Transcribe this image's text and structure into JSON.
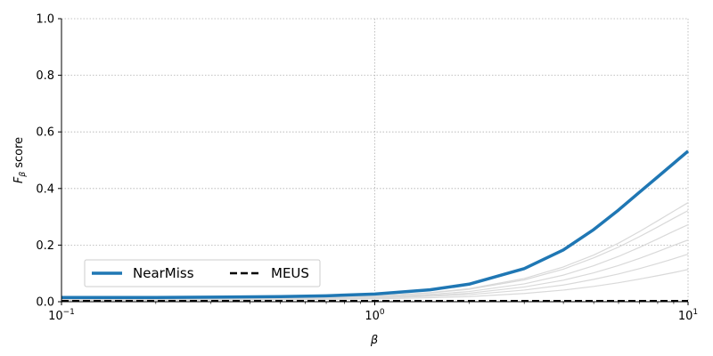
{
  "chart_data": {
    "type": "line",
    "title": "",
    "xlabel": "β",
    "ylabel_main": "F",
    "ylabel_sub": "β",
    "ylabel_rest": " score",
    "xscale": "log",
    "xlim": [
      0.1,
      10
    ],
    "ylim": [
      0.0,
      1.0
    ],
    "grid": true,
    "legend_position": "lower-left",
    "x_ticks": [
      {
        "value": 0.1,
        "base": "10",
        "exp": "−1"
      },
      {
        "value": 1,
        "base": "10",
        "exp": "0"
      },
      {
        "value": 10,
        "base": "10",
        "exp": "1"
      }
    ],
    "y_ticks": [
      {
        "value": 0.0,
        "label": "0.0"
      },
      {
        "value": 0.2,
        "label": "0.2"
      },
      {
        "value": 0.4,
        "label": "0.4"
      },
      {
        "value": 0.6,
        "label": "0.6"
      },
      {
        "value": 0.8,
        "label": "0.8"
      },
      {
        "value": 1.0,
        "label": "1.0"
      }
    ],
    "x": [
      0.1,
      0.15,
      0.2,
      0.3,
      0.5,
      0.7,
      1.0,
      1.5,
      2.0,
      3.0,
      4.0,
      5.0,
      6.0,
      7.0,
      8.0,
      9.0,
      10.0
    ],
    "series": [
      {
        "name": "NearMiss",
        "color": "#1f77b4",
        "style": "solid",
        "values": [
          0.015,
          0.015,
          0.015,
          0.016,
          0.018,
          0.021,
          0.027,
          0.042,
          0.062,
          0.117,
          0.183,
          0.255,
          0.324,
          0.387,
          0.441,
          0.489,
          0.532
        ]
      },
      {
        "name": "MEUS",
        "color": "#000000",
        "style": "dashed",
        "values": [
          0.003,
          0.003,
          0.003,
          0.003,
          0.003,
          0.003,
          0.003,
          0.003,
          0.003,
          0.003,
          0.003,
          0.003,
          0.003,
          0.003,
          0.003,
          0.003,
          0.003
        ]
      }
    ],
    "background_series": [
      {
        "color": "#d9d9d9",
        "values": [
          0.01,
          0.01,
          0.01,
          0.011,
          0.013,
          0.015,
          0.02,
          0.032,
          0.046,
          0.082,
          0.123,
          0.165,
          0.207,
          0.248,
          0.286,
          0.32,
          0.35
        ]
      },
      {
        "color": "#d9d9d9",
        "values": [
          0.01,
          0.01,
          0.01,
          0.011,
          0.013,
          0.015,
          0.02,
          0.031,
          0.044,
          0.077,
          0.115,
          0.155,
          0.193,
          0.23,
          0.264,
          0.295,
          0.322
        ]
      },
      {
        "color": "#d9d9d9",
        "values": [
          0.009,
          0.009,
          0.009,
          0.01,
          0.011,
          0.013,
          0.017,
          0.026,
          0.036,
          0.063,
          0.094,
          0.127,
          0.16,
          0.192,
          0.222,
          0.249,
          0.272
        ]
      },
      {
        "color": "#d9d9d9",
        "values": [
          0.008,
          0.008,
          0.008,
          0.009,
          0.01,
          0.012,
          0.015,
          0.022,
          0.03,
          0.052,
          0.076,
          0.102,
          0.128,
          0.153,
          0.177,
          0.199,
          0.218
        ]
      },
      {
        "color": "#d9d9d9",
        "values": [
          0.007,
          0.007,
          0.007,
          0.008,
          0.009,
          0.01,
          0.013,
          0.019,
          0.025,
          0.041,
          0.059,
          0.079,
          0.098,
          0.117,
          0.135,
          0.152,
          0.168
        ]
      },
      {
        "color": "#d9d9d9",
        "values": [
          0.005,
          0.005,
          0.005,
          0.006,
          0.007,
          0.008,
          0.01,
          0.014,
          0.018,
          0.029,
          0.041,
          0.054,
          0.067,
          0.08,
          0.092,
          0.103,
          0.114
        ]
      }
    ]
  }
}
